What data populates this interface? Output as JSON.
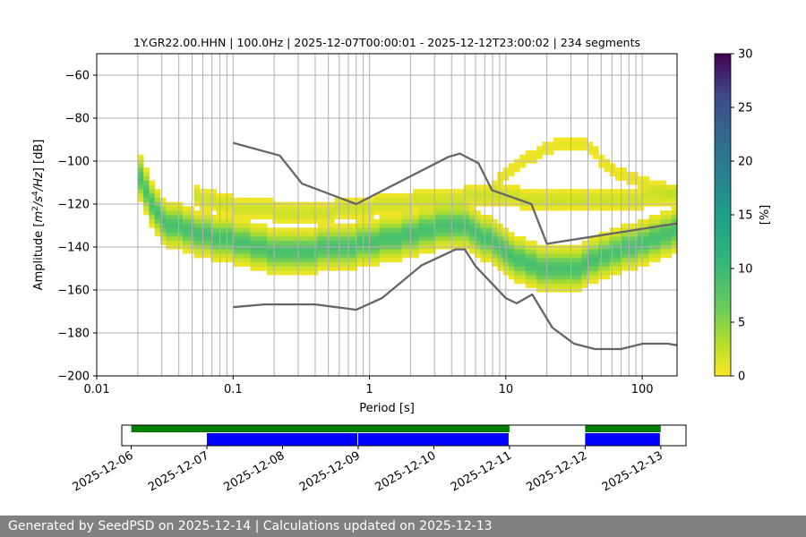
{
  "chart_data": {
    "type": "heatmap",
    "title": "1Y.GR22.00.HHN | 100.0Hz | 2025-12-07T00:00:01 - 2025-12-12T23:00:02 | 234 segments",
    "xlabel": "Period [s]",
    "ylabel_text": "Amplitude [m",
    "ylabel_parts": [
      "Amplitude [",
      "m",
      "2",
      "/",
      "s",
      "4",
      "/",
      "Hz",
      "] [dB]"
    ],
    "xscale": "log",
    "xlim": [
      0.01,
      180
    ],
    "ylim": [
      -200,
      -50
    ],
    "xticks": [
      0.01,
      0.1,
      1,
      10,
      100
    ],
    "xtick_labels": [
      "0.01",
      "0.1",
      "1",
      "10",
      "100"
    ],
    "yticks": [
      -200,
      -180,
      -160,
      -140,
      -120,
      -100,
      -80,
      -60
    ],
    "ytick_labels": [
      "−200",
      "−180",
      "−160",
      "−140",
      "−120",
      "−100",
      "−80",
      "−60"
    ],
    "grid": true,
    "colorbar": {
      "label": "[%]",
      "range": [
        0,
        30
      ],
      "ticks": [
        0,
        5,
        10,
        15,
        20,
        25,
        30
      ],
      "tick_labels": [
        "0",
        "5",
        "10",
        "15",
        "20",
        "25",
        "30"
      ],
      "colormap": "viridis_r"
    },
    "ridges": [
      {
        "name": "main",
        "points": [
          [
            0.02,
            -105
          ],
          [
            0.022,
            -112
          ],
          [
            0.03,
            -128
          ],
          [
            0.05,
            -133
          ],
          [
            0.1,
            -137
          ],
          [
            0.2,
            -142
          ],
          [
            0.4,
            -141
          ],
          [
            0.8,
            -139
          ],
          [
            1.5,
            -136
          ],
          [
            3,
            -131
          ],
          [
            5,
            -130
          ],
          [
            8,
            -138
          ],
          [
            12,
            -146
          ],
          [
            20,
            -150
          ],
          [
            30,
            -151
          ],
          [
            50,
            -144
          ],
          [
            100,
            -138
          ],
          [
            180,
            -132
          ]
        ],
        "width": 10,
        "pct": 9
      },
      {
        "name": "upper",
        "points": [
          [
            0.05,
            -116
          ],
          [
            0.1,
            -121
          ],
          [
            0.2,
            -123
          ],
          [
            0.4,
            -124
          ],
          [
            0.8,
            -122
          ],
          [
            1.5,
            -120
          ],
          [
            3,
            -118
          ],
          [
            5,
            -117
          ],
          [
            8,
            -115
          ],
          [
            15,
            -118
          ],
          [
            30,
            -118
          ],
          [
            60,
            -118
          ],
          [
            100,
            -117
          ],
          [
            180,
            -115
          ]
        ],
        "width": 6,
        "pct": 2
      },
      {
        "name": "bump",
        "points": [
          [
            8,
            -112
          ],
          [
            12,
            -102
          ],
          [
            20,
            -94
          ],
          [
            30,
            -91
          ],
          [
            40,
            -93
          ],
          [
            60,
            -104
          ],
          [
            100,
            -110
          ],
          [
            180,
            -114
          ]
        ],
        "width": 4,
        "pct": 1
      }
    ],
    "noise_models": [
      {
        "name": "high",
        "points": [
          [
            0.1,
            -91.5
          ],
          [
            0.22,
            -97.4
          ],
          [
            0.32,
            -110.5
          ],
          [
            0.8,
            -120
          ],
          [
            3.8,
            -98
          ],
          [
            4.6,
            -96.5
          ],
          [
            6.3,
            -101
          ],
          [
            7.9,
            -113.5
          ],
          [
            15.4,
            -120
          ],
          [
            20,
            -138.5
          ],
          [
            180,
            -129
          ]
        ]
      },
      {
        "name": "low",
        "points": [
          [
            0.1,
            -168
          ],
          [
            0.17,
            -166.7
          ],
          [
            0.4,
            -166.7
          ],
          [
            0.8,
            -169.2
          ],
          [
            1.24,
            -163.7
          ],
          [
            2.4,
            -148.6
          ],
          [
            4.3,
            -141.1
          ],
          [
            5.0,
            -141.1
          ],
          [
            6.0,
            -149
          ],
          [
            10,
            -163.8
          ],
          [
            12,
            -166.2
          ],
          [
            15.6,
            -162.1
          ],
          [
            21.9,
            -177.5
          ],
          [
            31.6,
            -185
          ],
          [
            45,
            -187.5
          ],
          [
            70,
            -187.5
          ],
          [
            101,
            -185
          ],
          [
            154,
            -185
          ],
          [
            180,
            -185.7
          ]
        ]
      }
    ],
    "availability": {
      "xlim": [
        "2025-12-05T21:00",
        "2025-12-13T08:00"
      ],
      "tick_labels": [
        "2025-12-06",
        "2025-12-07",
        "2025-12-08",
        "2025-12-09",
        "2025-12-10",
        "2025-12-11",
        "2025-12-12",
        "2025-12-13"
      ],
      "green_bars": [
        [
          "2025-12-06T00:00",
          "2025-12-11T00:00"
        ],
        [
          "2025-12-12T00:00",
          "2025-12-13T00:00"
        ]
      ],
      "blue_bars": [
        [
          "2025-12-07T00:00",
          "2025-12-09T00:00"
        ],
        [
          "2025-12-09T00:00",
          "2025-12-11T00:00"
        ],
        [
          "2025-12-12T00:00",
          "2025-12-13T00:00"
        ]
      ],
      "colors": {
        "green": "#008000",
        "blue": "#0000ff"
      }
    },
    "colors": {
      "noise_model": "#666666",
      "grid": "#b0b0b0"
    }
  },
  "footer": "Generated by SeedPSD on 2025-12-14 | Calculations updated on 2025-12-13"
}
